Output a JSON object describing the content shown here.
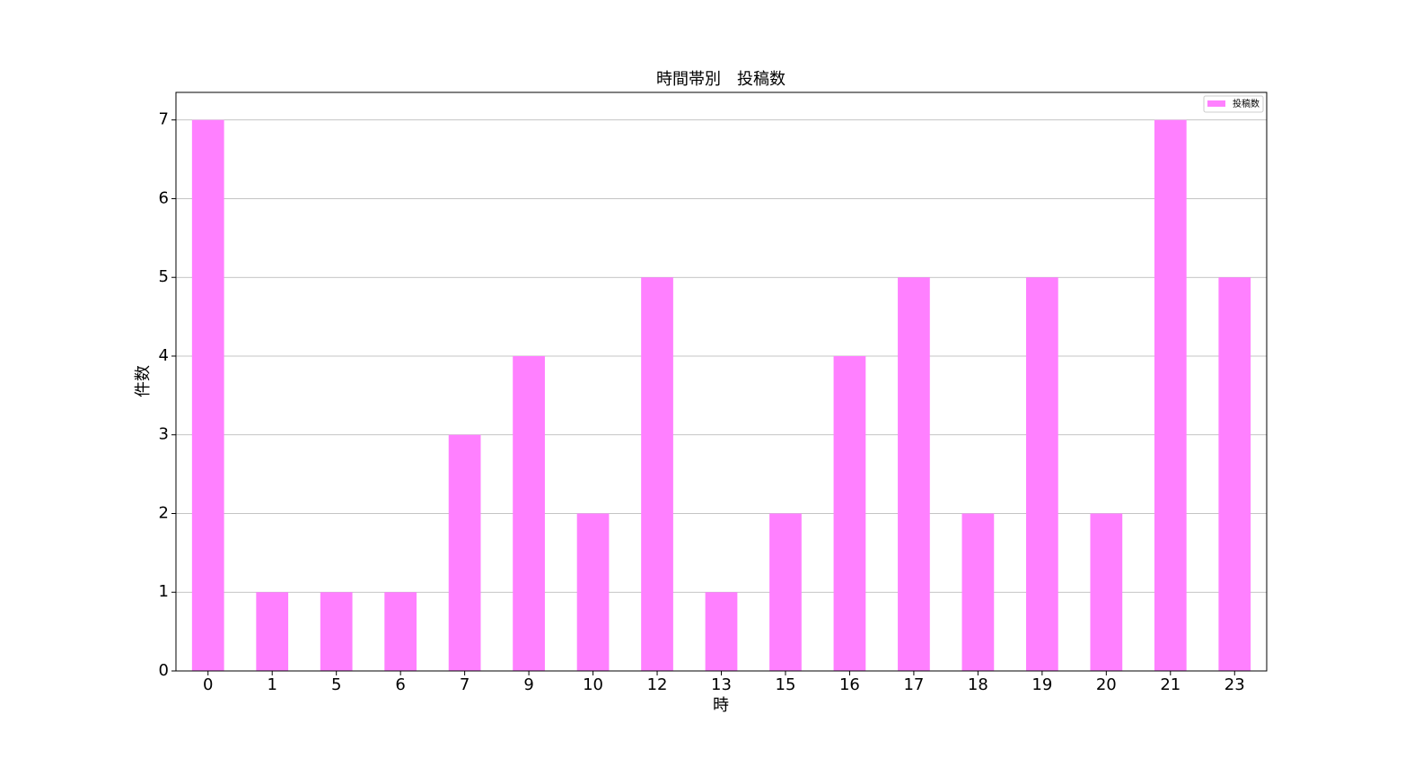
{
  "chart_data": {
    "type": "bar",
    "title": "時間帯別　投稿数",
    "x_label": "時",
    "y_label": "件数",
    "categories": [
      "0",
      "1",
      "5",
      "6",
      "7",
      "9",
      "10",
      "12",
      "13",
      "15",
      "16",
      "17",
      "18",
      "19",
      "20",
      "21",
      "23"
    ],
    "series": [
      {
        "name": "投稿数",
        "color": "#ff80ff",
        "values": [
          7,
          1,
          1,
          1,
          3,
          4,
          2,
          5,
          1,
          2,
          4,
          5,
          2,
          5,
          2,
          7,
          5
        ]
      }
    ],
    "ylim": [
      0,
      7.35
    ],
    "yticks": [
      0,
      1,
      2,
      3,
      4,
      5,
      6,
      7
    ],
    "grid": true,
    "legend": "upper right"
  }
}
